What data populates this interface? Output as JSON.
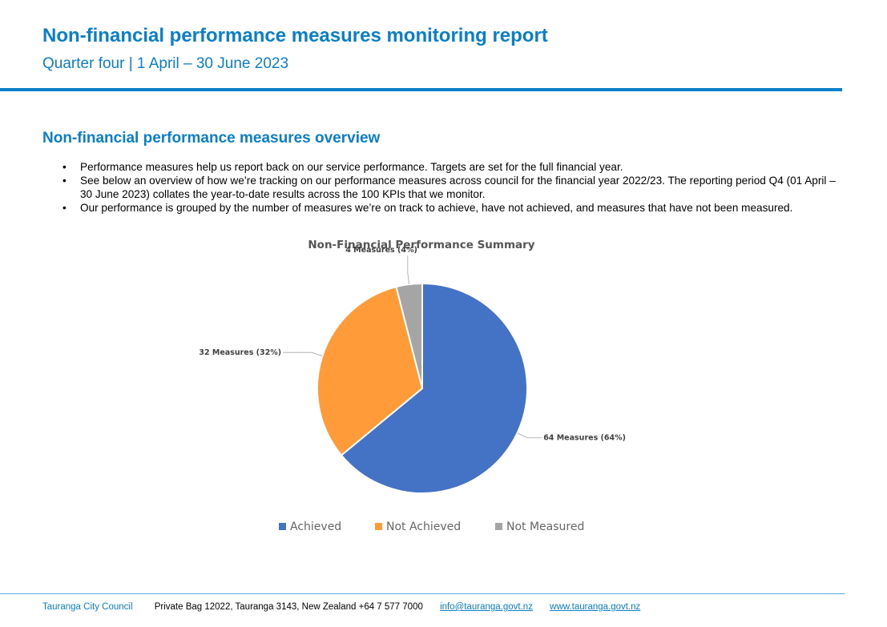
{
  "header": {
    "title": "Non-financial performance measures monitoring report",
    "subtitle": "Quarter four | 1 April – 30 June 2023"
  },
  "overview": {
    "heading": "Non-financial performance measures overview",
    "bullets": [
      "Performance measures help us report back on our service performance. Targets are set for the full financial year.",
      "See below an overview of how we’re tracking on our performance measures across council for the financial year 2022/23. The reporting period Q4 (01 April – 30 June 2023) collates the year-to-date results across the 100 KPIs that we monitor.",
      "Our performance is grouped by the number of measures we’re on track to achieve, have not achieved, and measures that have not been measured."
    ]
  },
  "chart_data": {
    "type": "pie",
    "title": "Non-Financial Performance Summary",
    "categories": [
      "Achieved",
      "Not Achieved",
      "Not Measured"
    ],
    "values": [
      64,
      32,
      4
    ],
    "data_labels": [
      "64 Measures (64%)",
      "32 Measures (32%)",
      "4 Measures (4%)"
    ],
    "colors": [
      "#4472c4",
      "#ff9b38",
      "#a5a5a5"
    ],
    "legend_position": "bottom"
  },
  "footer": {
    "org": "Tauranga City Council",
    "address": "Private Bag 12022, Tauranga 3143, New Zealand   +64 7 577 7000",
    "email": "info@tauranga.govt.nz",
    "website": "www.tauranga.govt.nz"
  }
}
